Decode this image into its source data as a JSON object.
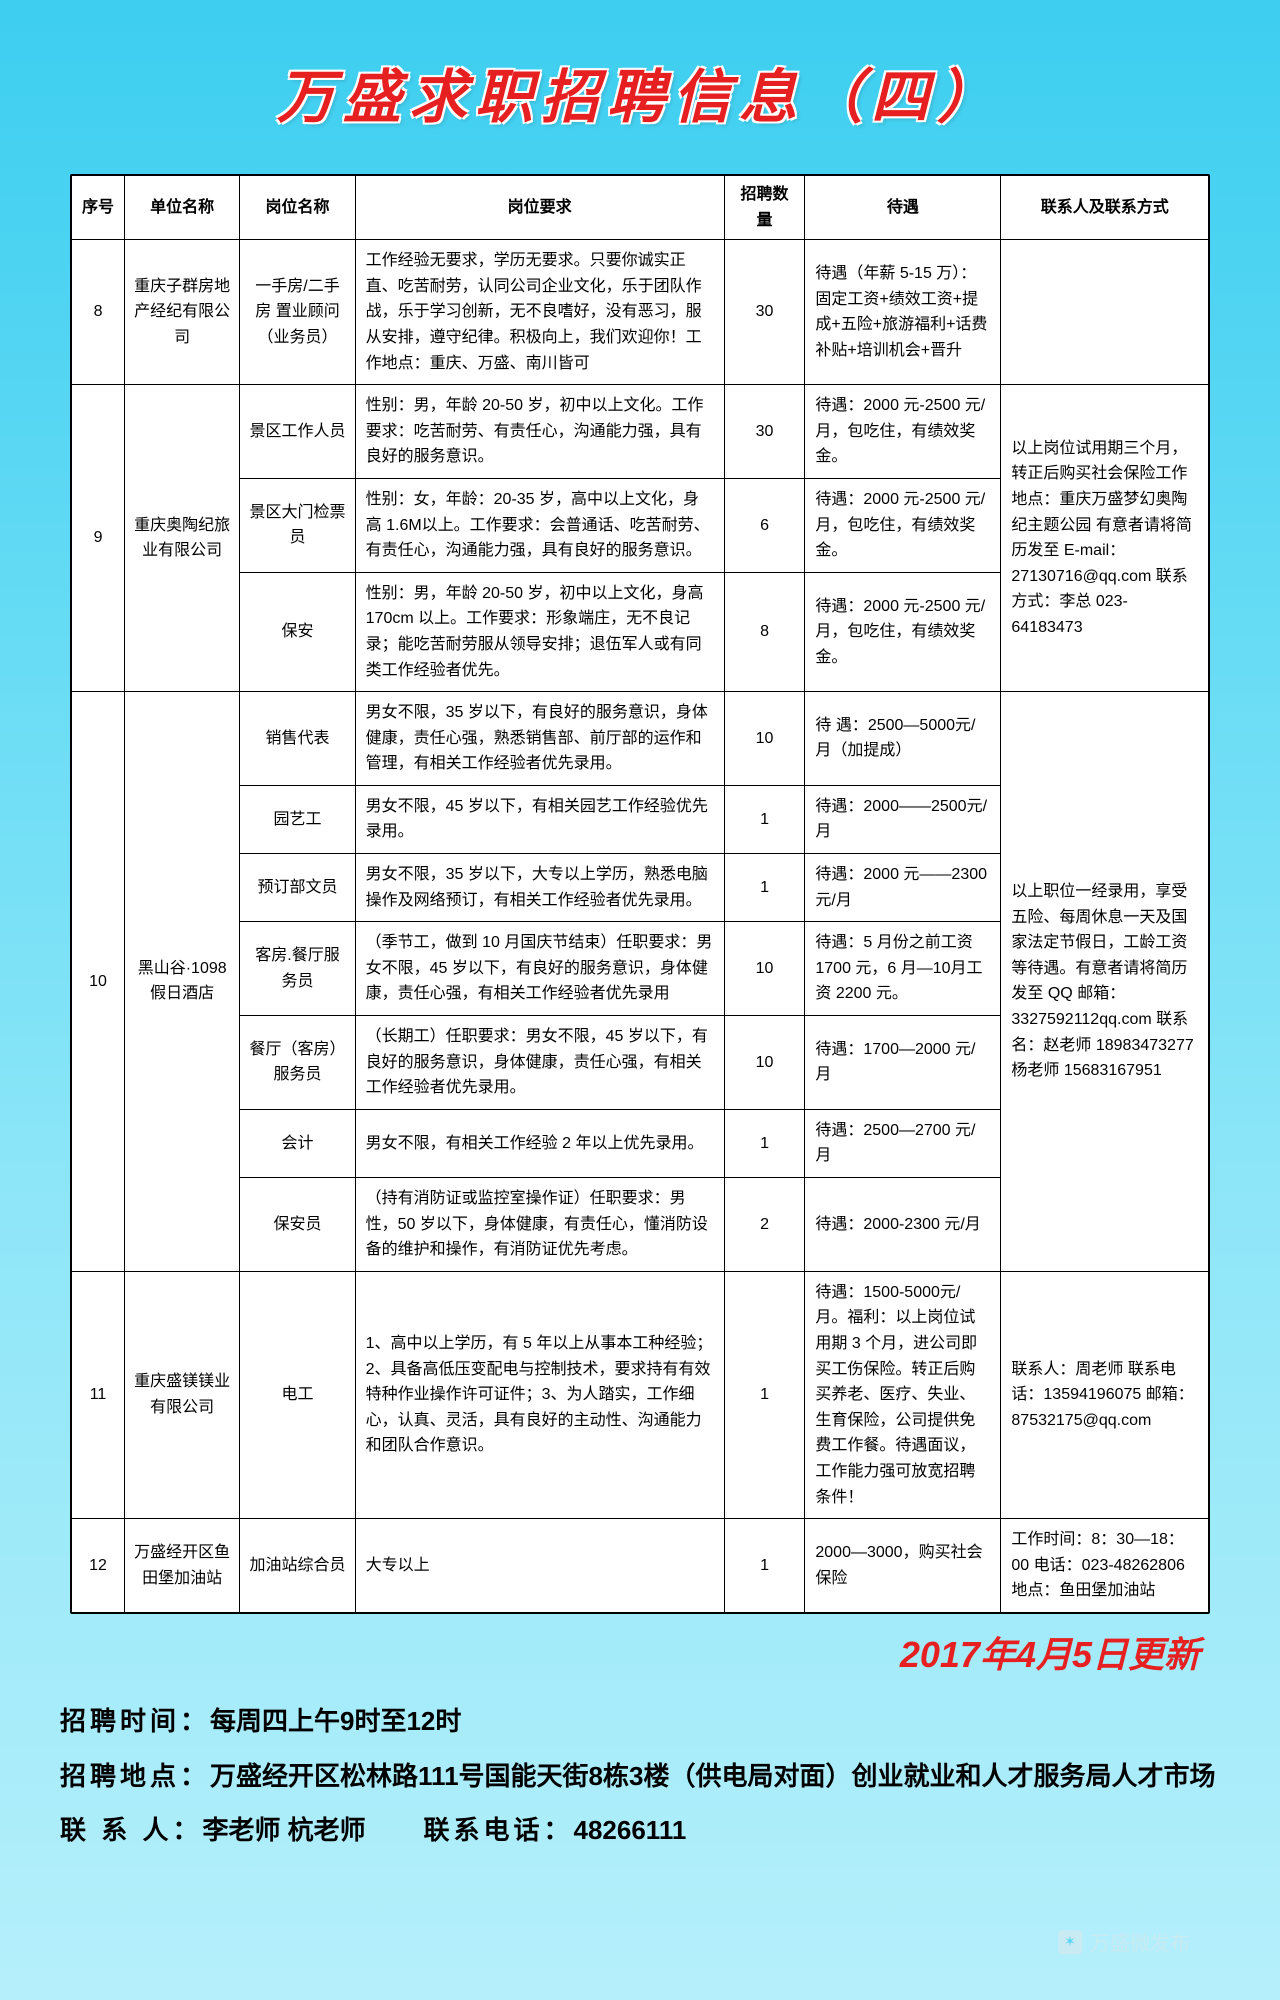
{
  "title": "万盛求职招聘信息（四）",
  "update_date": "2017年4月5日更新",
  "footer": {
    "time_label": "招聘时间：",
    "time_value": "每周四上午9时至12时",
    "addr_label": "招聘地点：",
    "addr_value": "万盛经开区松林路111号国能天街8栋3楼（供电局对面）创业就业和人才服务局人才市场",
    "contact_label": "联 系 人：",
    "contact_value": "李老师  杭老师",
    "phone_label": "联系电话：",
    "phone_value": "48266111"
  },
  "watermark": "万盛微发布",
  "columns": [
    "序号",
    "单位名称",
    "岗位名称",
    "岗位要求",
    "招聘数量",
    "待遇",
    "联系人及联系方式"
  ],
  "rows": [
    {
      "no": "8",
      "company": "重庆子群房地产经纪有限公司",
      "position": "一手房/二手房 置业顾问（业务员）",
      "requirement": "工作经验无要求，学历无要求。只要你诚实正直、吃苦耐劳，认同公司企业文化，乐于团队作战，乐于学习创新，无不良嗜好，没有恶习，服从安排，遵守纪律。积极向上，我们欢迎你！工作地点：重庆、万盛、南川皆可",
      "count": "30",
      "treatment": "待遇（年薪 5-15 万）：固定工资+绩效工资+提成+五险+旅游福利+话费补贴+培训机会+晋升",
      "contact": ""
    },
    {
      "no": "9",
      "company": "重庆奥陶纪旅业有限公司",
      "group": [
        {
          "position": "景区工作人员",
          "requirement": "性别：男，年龄 20-50 岁，初中以上文化。工作要求：吃苦耐劳、有责任心，沟通能力强，具有良好的服务意识。",
          "count": "30",
          "treatment": "待遇：2000 元-2500 元/月，包吃住，有绩效奖金。"
        },
        {
          "position": "景区大门检票员",
          "requirement": "性别：女，年龄：20-35 岁，高中以上文化，身高 1.6M以上。工作要求：会普通话、吃苦耐劳、有责任心，沟通能力强，具有良好的服务意识。",
          "count": "6",
          "treatment": "待遇：2000 元-2500 元/月，包吃住，有绩效奖金。"
        },
        {
          "position": "保安",
          "requirement": "性别：男，年龄 20-50 岁，初中以上文化，身高 170cm 以上。工作要求：形象端庄，无不良记录；能吃苦耐劳服从领导安排；退伍军人或有同类工作经验者优先。",
          "count": "8",
          "treatment": "待遇：2000 元-2500 元/月，包吃住，有绩效奖金。"
        }
      ],
      "contact": "以上岗位试用期三个月，转正后购买社会保险工作地点：重庆万盛梦幻奥陶纪主题公园 有意者请将简历发至 E-mail：27130716@qq.com 联系方式：李总 023-64183473"
    },
    {
      "no": "10",
      "company": "黑山谷·1098 假日酒店",
      "group": [
        {
          "position": "销售代表",
          "requirement": "男女不限，35 岁以下，有良好的服务意识，身体健康，责任心强，熟悉销售部、前厅部的运作和管理，有相关工作经验者优先录用。",
          "count": "10",
          "treatment": "待 遇：2500—5000元/月（加提成）"
        },
        {
          "position": "园艺工",
          "requirement": "男女不限，45 岁以下，有相关园艺工作经验优先录用。",
          "count": "1",
          "treatment": "待遇：2000——2500元/月"
        },
        {
          "position": "预订部文员",
          "requirement": "男女不限，35 岁以下，大专以上学历，熟悉电脑操作及网络预订，有相关工作经验者优先录用。",
          "count": "1",
          "treatment": "待遇：2000 元——2300元/月"
        },
        {
          "position": "客房.餐厅服务员",
          "requirement": "（季节工，做到 10 月国庆节结束）任职要求：男女不限，45 岁以下，有良好的服务意识，身体健康，责任心强，有相关工作经验者优先录用",
          "count": "10",
          "treatment": "待遇：5 月份之前工资 1700 元，6 月—10月工资 2200 元。"
        },
        {
          "position": "餐厅（客房）服务员",
          "requirement": "（长期工）任职要求：男女不限，45 岁以下，有良好的服务意识，身体健康，责任心强，有相关工作经验者优先录用。",
          "count": "10",
          "treatment": "待遇：1700—2000 元/月"
        },
        {
          "position": "会计",
          "requirement": "男女不限，有相关工作经验 2 年以上优先录用。",
          "count": "1",
          "treatment": "待遇：2500—2700 元/月"
        },
        {
          "position": "保安员",
          "requirement": "（持有消防证或监控室操作证）任职要求：男性，50 岁以下，身体健康，有责任心，懂消防设备的维护和操作，有消防证优先考虑。",
          "count": "2",
          "treatment": "待遇：2000-2300 元/月"
        }
      ],
      "contact": "以上职位一经录用，享受五险、每周休息一天及国家法定节假日，工龄工资等待遇。有意者请将简历发至 QQ 邮箱：3327592112qq.com 联系名：赵老师 18983473277 杨老师 15683167951"
    },
    {
      "no": "11",
      "company": "重庆盛镁镁业有限公司",
      "position": "电工",
      "requirement": "1、高中以上学历，有 5 年以上从事本工种经验；2、具备高低压变配电与控制技术，要求持有有效特种作业操作许可证件；3、为人踏实，工作细心，认真、灵活，具有良好的主动性、沟通能力和团队合作意识。",
      "count": "1",
      "treatment": "待遇：1500-5000元/月。福利：以上岗位试用期 3 个月，进公司即买工伤保险。转正后购买养老、医疗、失业、生育保险，公司提供免费工作餐。待遇面议，工作能力强可放宽招聘条件！",
      "contact": "联系人：周老师 联系电话：13594196075 邮箱：87532175@qq.com"
    },
    {
      "no": "12",
      "company": "万盛经开区鱼田堡加油站",
      "position": "加油站综合员",
      "requirement": "大专以上",
      "count": "1",
      "treatment": "2000—3000，购买社会保险",
      "contact": "工作时间：8：30—18：00 电话：023-48262806 地点：鱼田堡加油站"
    }
  ]
}
